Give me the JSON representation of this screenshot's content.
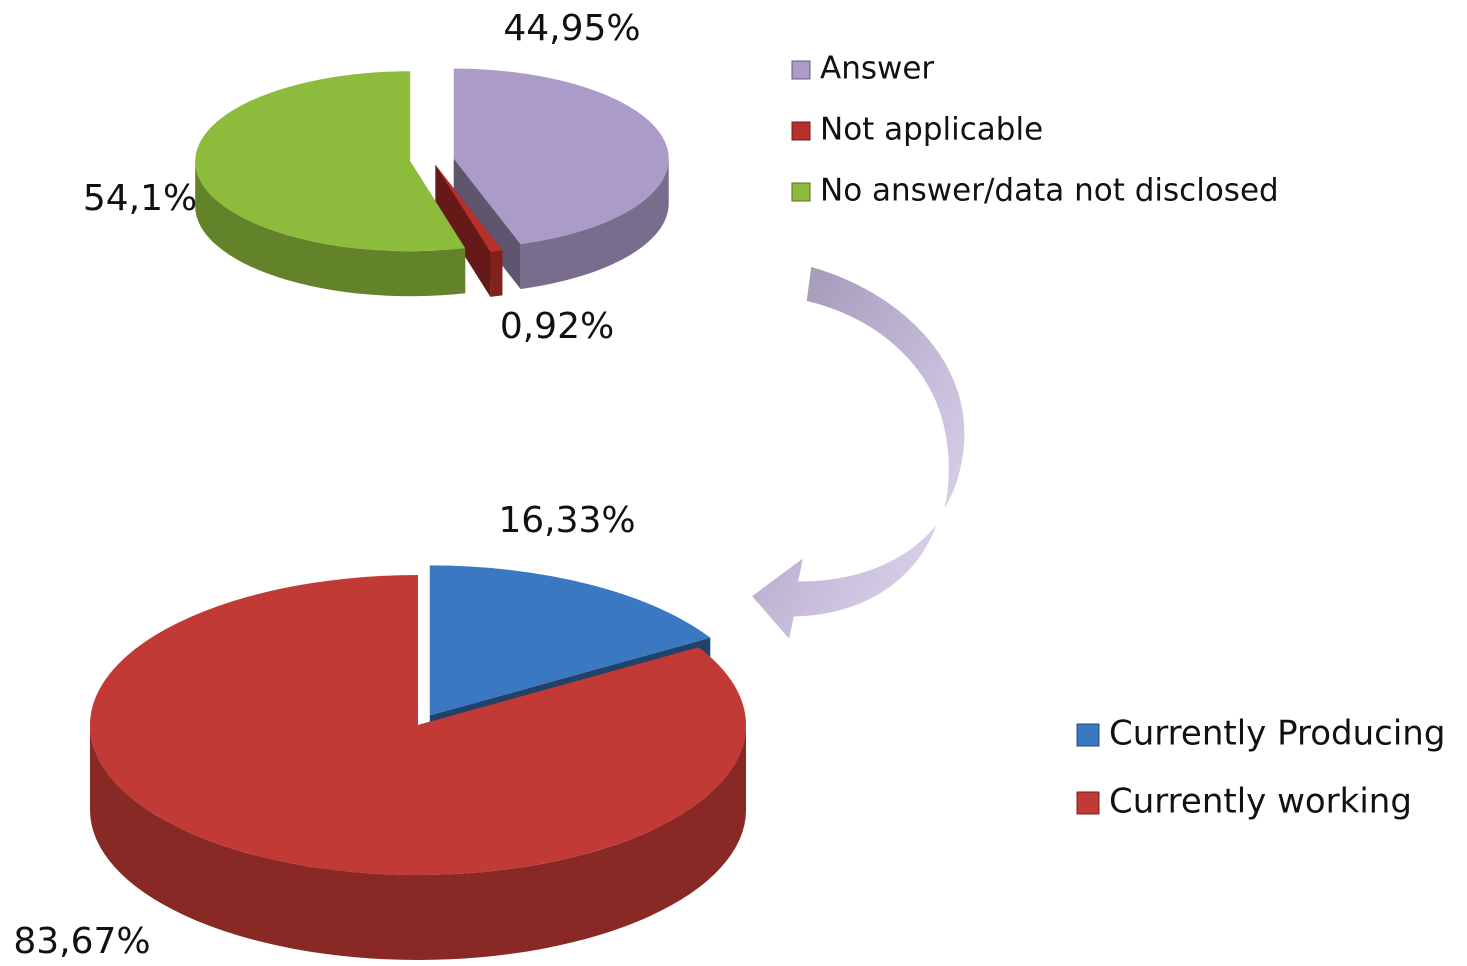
{
  "chart_data": [
    {
      "type": "pie",
      "categories": [
        "Answer",
        "Not applicable",
        "No answer/data not disclosed"
      ],
      "values": [
        44.95,
        0.92,
        54.1
      ],
      "value_labels": [
        "44,95%",
        "0,92%",
        "54,1%"
      ],
      "colors": [
        "#ab9bc9",
        "#b8302c",
        "#8dbb3c"
      ],
      "legend": "right"
    },
    {
      "type": "pie",
      "categories": [
        "Currently Producing",
        "Currently working"
      ],
      "values": [
        16.33,
        83.67
      ],
      "value_labels": [
        "16,33%",
        "83,67%"
      ],
      "colors": [
        "#3b78c2",
        "#c23a35"
      ],
      "legend": "right"
    }
  ]
}
